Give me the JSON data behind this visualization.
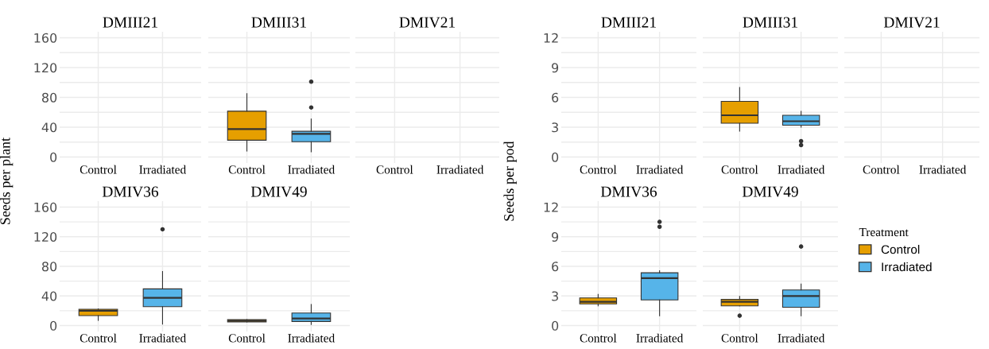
{
  "chart_data": [
    {
      "type": "box",
      "title": "DMIII21",
      "ylabel": "Seeds per plant",
      "categories": [
        "Control",
        "Irradiated"
      ],
      "ylim": [
        -8,
        168
      ],
      "yticks": [
        0,
        {
          "value": 20,
          "label": null
        },
        40,
        {
          "value": 60,
          "label": null
        },
        80,
        {
          "value": 100,
          "label": null
        },
        120,
        {
          "value": 140,
          "label": null
        },
        160
      ],
      "grid": true
    },
    {
      "type": "box",
      "title": "DMIII31",
      "categories": [
        "Control",
        "Irradiated"
      ],
      "ylim": [
        -8,
        168
      ],
      "yticks": [
        0,
        {
          "value": 20,
          "label": null
        },
        40,
        {
          "value": 60,
          "label": null
        },
        80,
        {
          "value": 100,
          "label": null
        },
        120,
        {
          "value": 140,
          "label": null
        },
        160
      ],
      "grid": true,
      "tick_labels": "x",
      "series": [
        {
          "color": "#e69f00",
          "boxes": [
            {
              "low": 8,
              "q1": 22.5,
              "median": 37.5,
              "q3": 61.5,
              "high": 85
            },
            null
          ]
        },
        {
          "color": "#56b4e9",
          "boxes": [
            null,
            {
              "low": 7,
              "q1": 20.5,
              "median": 31,
              "q3": 34.5,
              "high": 51,
              "outliers": [
                66.5,
                101
              ]
            }
          ]
        }
      ]
    },
    {
      "type": "box",
      "title": "DMIV21",
      "categories": [
        "Control",
        "Irradiated"
      ],
      "ylim": [
        -8,
        168
      ],
      "yticks": [
        0,
        {
          "value": 20,
          "label": null
        },
        40,
        {
          "value": 60,
          "label": null
        },
        80,
        {
          "value": 100,
          "label": null
        },
        120,
        {
          "value": 140,
          "label": null
        },
        160
      ],
      "grid": true,
      "tick_labels": "x"
    },
    {
      "type": "box",
      "title": "DMIV36",
      "categories": [
        "Control",
        "Irradiated"
      ],
      "ylim": [
        -8,
        168
      ],
      "yticks": [
        0,
        {
          "value": 20,
          "label": null
        },
        40,
        {
          "value": 60,
          "label": null
        },
        80,
        {
          "value": 100,
          "label": null
        },
        120,
        {
          "value": 140,
          "label": null
        },
        160
      ],
      "grid": true,
      "series": [
        {
          "color": "#e69f00",
          "boxes": [
            {
              "low": 7,
              "q1": 13.5,
              "median": 20,
              "q3": 22,
              "high": 22.5
            },
            null
          ]
        },
        {
          "color": "#56b4e9",
          "boxes": [
            null,
            {
              "low": 2,
              "q1": 25.5,
              "median": 37.5,
              "q3": 49.5,
              "high": 73,
              "outliers": [
                130
              ]
            }
          ]
        }
      ]
    },
    {
      "type": "box",
      "title": "DMIV49",
      "categories": [
        "Control",
        "Irradiated"
      ],
      "ylim": [
        -8,
        168
      ],
      "yticks": [
        0,
        {
          "value": 20,
          "label": null
        },
        40,
        {
          "value": 60,
          "label": null
        },
        80,
        {
          "value": 100,
          "label": null
        },
        120,
        {
          "value": 140,
          "label": null
        },
        160
      ],
      "grid": true,
      "tick_labels": "x",
      "series": [
        {
          "color": "#e69f00",
          "boxes": [
            {
              "low": 5,
              "q1": 5,
              "median": 6.5,
              "q3": 8,
              "high": 8
            },
            null
          ]
        },
        {
          "color": "#56b4e9",
          "boxes": [
            null,
            {
              "low": 1.5,
              "q1": 5.5,
              "median": 9.5,
              "q3": 17,
              "high": 28.5
            }
          ]
        }
      ]
    },
    {
      "type": "box",
      "title": "DMIII21",
      "ylabel": "Seeds per pod",
      "categories": [
        "Control",
        "Irradiated"
      ],
      "ylim": [
        -0.6,
        12.6
      ],
      "yticks": [
        0,
        {
          "value": 1.5,
          "label": null
        },
        3,
        {
          "value": 4.5,
          "label": null
        },
        6,
        {
          "value": 7.5,
          "label": null
        },
        9,
        {
          "value": 10.5,
          "label": null
        },
        12
      ],
      "grid": true
    },
    {
      "type": "box",
      "title": "DMIII31",
      "categories": [
        "Control",
        "Irradiated"
      ],
      "ylim": [
        -0.6,
        12.6
      ],
      "yticks": [
        0,
        {
          "value": 1.5,
          "label": null
        },
        3,
        {
          "value": 4.5,
          "label": null
        },
        6,
        {
          "value": 7.5,
          "label": null
        },
        9,
        {
          "value": 10.5,
          "label": null
        },
        12
      ],
      "grid": true,
      "tick_labels": "x",
      "series": [
        {
          "color": "#e69f00",
          "boxes": [
            {
              "low": 2.6,
              "q1": 3.4,
              "median": 4.2,
              "q3": 5.6,
              "high": 7
            },
            null
          ]
        },
        {
          "color": "#56b4e9",
          "boxes": [
            null,
            {
              "low": 3,
              "q1": 3.2,
              "median": 3.6,
              "q3": 4.2,
              "high": 4.6,
              "outliers": [
                1.2,
                1.6
              ]
            }
          ]
        }
      ]
    },
    {
      "type": "box",
      "title": "DMIV21",
      "categories": [
        "Control",
        "Irradiated"
      ],
      "ylim": [
        -0.6,
        12.6
      ],
      "yticks": [
        0,
        {
          "value": 1.5,
          "label": null
        },
        3,
        {
          "value": 4.5,
          "label": null
        },
        6,
        {
          "value": 7.5,
          "label": null
        },
        9,
        {
          "value": 10.5,
          "label": null
        },
        12
      ],
      "grid": true,
      "tick_labels": "x"
    },
    {
      "type": "box",
      "title": "DMIV36",
      "categories": [
        "Control",
        "Irradiated"
      ],
      "ylim": [
        -0.6,
        12.6
      ],
      "yticks": [
        0,
        {
          "value": 1.5,
          "label": null
        },
        3,
        {
          "value": 4.5,
          "label": null
        },
        6,
        {
          "value": 7.5,
          "label": null
        },
        9,
        {
          "value": 10.5,
          "label": null
        },
        12
      ],
      "grid": true,
      "series": [
        {
          "color": "#e69f00",
          "boxes": [
            {
              "low": 2,
              "q1": 2.2,
              "median": 2.4,
              "q3": 2.8,
              "high": 3.15
            },
            null
          ]
        },
        {
          "color": "#56b4e9",
          "boxes": [
            null,
            {
              "low": 1,
              "q1": 2.6,
              "median": 4.8,
              "q3": 5.35,
              "high": 5.55,
              "outliers": [
                10,
                10.5
              ]
            }
          ]
        }
      ]
    },
    {
      "type": "box",
      "title": "DMIV49",
      "categories": [
        "Control",
        "Irradiated"
      ],
      "ylim": [
        -0.6,
        12.6
      ],
      "yticks": [
        0,
        {
          "value": 1.5,
          "label": null
        },
        3,
        {
          "value": 4.5,
          "label": null
        },
        6,
        {
          "value": 7.5,
          "label": null
        },
        9,
        {
          "value": 10.5,
          "label": null
        },
        12
      ],
      "grid": true,
      "tick_labels": "x",
      "legend": "right",
      "legend_title": "Treatment",
      "series": [
        {
          "name": "Control",
          "color": "#e69f00",
          "boxes": [
            {
              "low": 2,
              "q1": 2,
              "median": 2.4,
              "q3": 2.65,
              "high": 2.95,
              "outliers": [
                1
              ]
            },
            null
          ]
        },
        {
          "name": "Irradiated",
          "color": "#56b4e9",
          "boxes": [
            null,
            {
              "low": 1,
              "q1": 1.85,
              "median": 3,
              "q3": 3.6,
              "high": 4.2,
              "outliers": [
                8
              ]
            }
          ]
        }
      ]
    }
  ]
}
